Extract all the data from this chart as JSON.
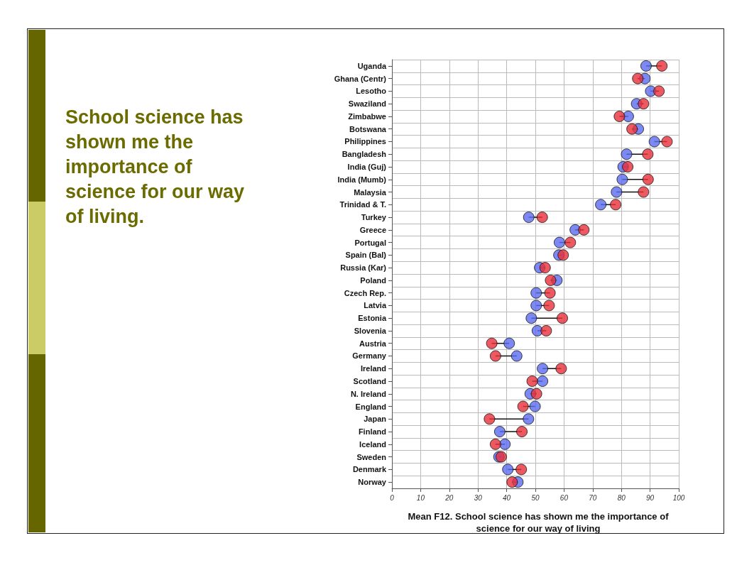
{
  "chart_data": {
    "type": "scatter",
    "title": "School science has shown me the importance of science for our way of living.",
    "xlabel": "Mean F12. School science has shown me the importance of science for our way of living",
    "orientation": "horizontal",
    "categories": [
      "Uganda",
      "Ghana (Centr)",
      "Lesotho",
      "Swaziland",
      "Zimbabwe",
      "Botswana",
      "Philippines",
      "Bangladesh",
      "India (Guj)",
      "India (Mumb)",
      "Malaysia",
      "Trinidad & T.",
      "Turkey",
      "Greece",
      "Portugal",
      "Spain (Bal)",
      "Russia (Kar)",
      "Poland",
      "Czech Rep.",
      "Latvia",
      "Estonia",
      "Slovenia",
      "Austria",
      "Germany",
      "Ireland",
      "Scotland",
      "N. Ireland",
      "England",
      "Japan",
      "Finland",
      "Iceland",
      "Sweden",
      "Denmark",
      "Norway"
    ],
    "series": [
      {
        "color": "#5b6cf0",
        "values": [
          88.6,
          88.2,
          90.2,
          85.3,
          82.4,
          85.9,
          91.5,
          81.8,
          80.6,
          80.3,
          78.3,
          72.8,
          47.7,
          63.9,
          58.4,
          58.2,
          51.5,
          57.5,
          50.3,
          50.3,
          48.6,
          50.7,
          40.9,
          43.5,
          52.5,
          52.5,
          48.2,
          49.9,
          47.6,
          37.6,
          39.4,
          37.3,
          40.4,
          43.9
        ]
      },
      {
        "color": "#e8303a",
        "values": [
          94.1,
          85.7,
          93.1,
          87.7,
          79.3,
          83.7,
          95.9,
          89.2,
          82.2,
          89.3,
          87.7,
          78.0,
          52.4,
          66.9,
          62.2,
          59.7,
          53.4,
          55.3,
          55.1,
          54.8,
          59.4,
          53.8,
          34.8,
          36.1,
          59.0,
          48.9,
          50.4,
          45.7,
          34.0,
          45.3,
          36.1,
          38.1,
          45.1,
          41.9
        ]
      }
    ],
    "xlim": [
      0,
      100
    ],
    "xticks": [
      0,
      10,
      20,
      30,
      40,
      50,
      60,
      70,
      80,
      90,
      100
    ],
    "grid": true,
    "marker": "circle"
  }
}
